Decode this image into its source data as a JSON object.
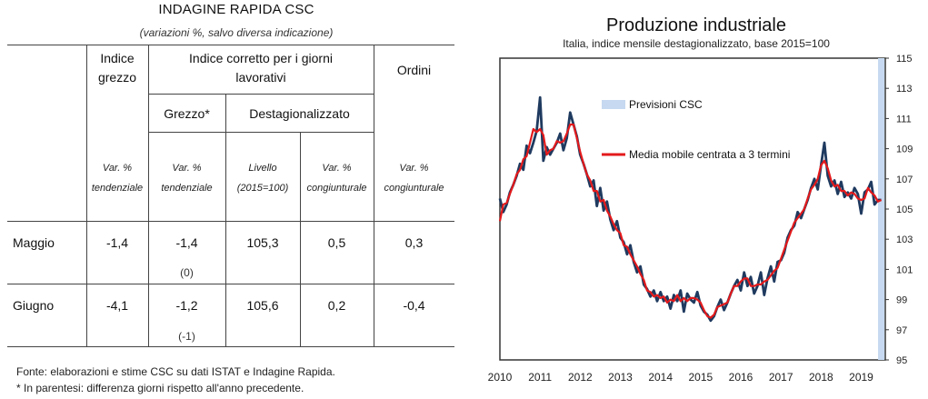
{
  "table": {
    "title": "INDAGINE RAPIDA CSC",
    "subtitle": "(variazioni %, salvo diversa indicazione)",
    "headers": {
      "indice_grezzo": [
        "Indice",
        "grezzo"
      ],
      "indice_corretto": [
        "Indice corretto per i giorni",
        "lavorativi"
      ],
      "ordini": "Ordini",
      "grezzo": "Grezzo*",
      "destagionalizzato": "Destagionalizzato"
    },
    "units": [
      [
        "Var. %",
        "tendenziale"
      ],
      [
        "Var. %",
        "tendenziale"
      ],
      [
        "Livello",
        "(2015=100)"
      ],
      [
        "Var. %",
        "congiunturale"
      ],
      [
        "Var. %",
        "congiunturale"
      ]
    ],
    "rows": [
      {
        "label": "Maggio",
        "values": [
          "-1,4",
          "-1,4",
          "105,3",
          "0,5",
          "0,3"
        ],
        "note": "(0)"
      },
      {
        "label": "Giugno",
        "values": [
          "-4,1",
          "-1,2",
          "105,6",
          "0,2",
          "-0,4"
        ],
        "note": "(-1)"
      }
    ],
    "footnotes": [
      "Fonte: elaborazioni e stime CSC su dati ISTAT e Indagine Rapida.",
      "* In parentesi: differenza giorni rispetto all'anno precedente."
    ]
  },
  "chart_data": {
    "type": "line",
    "title": "Produzione industriale",
    "subtitle": "Italia, indice mensile destagionalizzato, base 2015=100",
    "legend": [
      "Previsioni CSC",
      "Media mobile centrata a 3 termini"
    ],
    "x_tick_labels": [
      "2010",
      "2011",
      "2012",
      "2013",
      "2014",
      "2015",
      "2016",
      "2017",
      "2018",
      "2019"
    ],
    "y_tick_labels": [
      "95",
      "97",
      "99",
      "101",
      "103",
      "105",
      "107",
      "109",
      "111",
      "113",
      "115"
    ],
    "ylim": [
      95,
      115
    ],
    "xlim": [
      2010.0,
      2019.6
    ],
    "forecast_shading": [
      2019.42,
      2019.58
    ],
    "colors": {
      "series": "#1f3a5f",
      "moving_average": "#e3191b",
      "forecast": "#c6d9f0"
    },
    "series": [
      {
        "name": "Produzione industriale",
        "start": [
          2010,
          1
        ],
        "values": [
          105.7,
          104.8,
          105.3,
          106.1,
          106.6,
          107.2,
          108.0,
          107.6,
          109.2,
          108.7,
          109.4,
          110.2,
          112.4,
          108.2,
          109.1,
          108.6,
          109.0,
          109.4,
          110.0,
          108.9,
          109.7,
          111.4,
          110.6,
          109.8,
          108.6,
          108.0,
          107.3,
          106.5,
          106.9,
          105.2,
          106.4,
          104.9,
          105.5,
          104.3,
          103.6,
          104.2,
          103.1,
          102.8,
          102.0,
          102.6,
          101.5,
          100.8,
          101.2,
          100.0,
          99.7,
          99.2,
          99.6,
          98.9,
          99.5,
          98.9,
          99.2,
          98.4,
          99.3,
          98.9,
          99.6,
          98.2,
          99.4,
          99.0,
          98.8,
          99.5,
          98.6,
          98.2,
          98.0,
          97.6,
          97.9,
          98.5,
          99.0,
          98.3,
          98.8,
          99.4,
          99.9,
          100.3,
          99.6,
          100.8,
          99.9,
          100.5,
          99.4,
          99.9,
          100.8,
          99.3,
          100.4,
          101.2,
          100.2,
          101.5,
          101.6,
          102.1,
          103.1,
          103.6,
          103.9,
          104.8,
          104.4,
          105.0,
          105.6,
          106.4,
          107.0,
          106.3,
          107.9,
          109.4,
          107.2,
          106.5,
          106.9,
          106.0,
          106.8,
          105.8,
          106.1,
          105.7,
          106.4,
          106.0,
          104.7,
          106.1,
          106.3,
          106.8,
          105.3,
          105.6,
          105.6
        ]
      },
      {
        "name": "Media mobile centrata a 3 termini",
        "start": [
          2010,
          1
        ],
        "values": [
          104.2,
          105.3,
          105.4,
          106.0,
          106.6,
          107.3,
          107.6,
          108.3,
          108.5,
          109.4,
          110.3,
          110.1,
          110.3,
          109.9,
          108.6,
          108.9,
          109.0,
          109.5,
          109.4,
          109.5,
          110.0,
          110.6,
          110.6,
          109.7,
          108.8,
          108.0,
          107.3,
          106.9,
          106.2,
          106.2,
          105.5,
          105.6,
          104.9,
          104.5,
          104.0,
          103.6,
          103.4,
          102.6,
          102.5,
          102.0,
          101.6,
          101.2,
          100.7,
          100.3,
          99.6,
          99.5,
          99.2,
          99.3,
          99.1,
          99.2,
          98.8,
          99.0,
          98.9,
          99.3,
          98.9,
          99.1,
          98.9,
          99.1,
          99.1,
          99.0,
          98.8,
          98.3,
          97.9,
          97.8,
          98.0,
          98.5,
          98.6,
          98.7,
          98.8,
          99.4,
          99.9,
          99.9,
          100.2,
          100.4,
          100.4,
          99.9,
          99.9,
          100.0,
          100.0,
          100.2,
          100.3,
          100.6,
          100.9,
          101.1,
          101.7,
          102.3,
          102.9,
          103.5,
          104.1,
          104.4,
          104.7,
          105.0,
          105.7,
          106.3,
          106.6,
          107.0,
          107.9,
          108.2,
          107.7,
          106.9,
          106.5,
          106.6,
          106.2,
          106.2,
          105.9,
          106.1,
          106.0,
          105.7,
          105.6,
          105.7,
          106.4,
          106.1,
          105.9,
          105.5,
          105.6
        ]
      }
    ]
  }
}
